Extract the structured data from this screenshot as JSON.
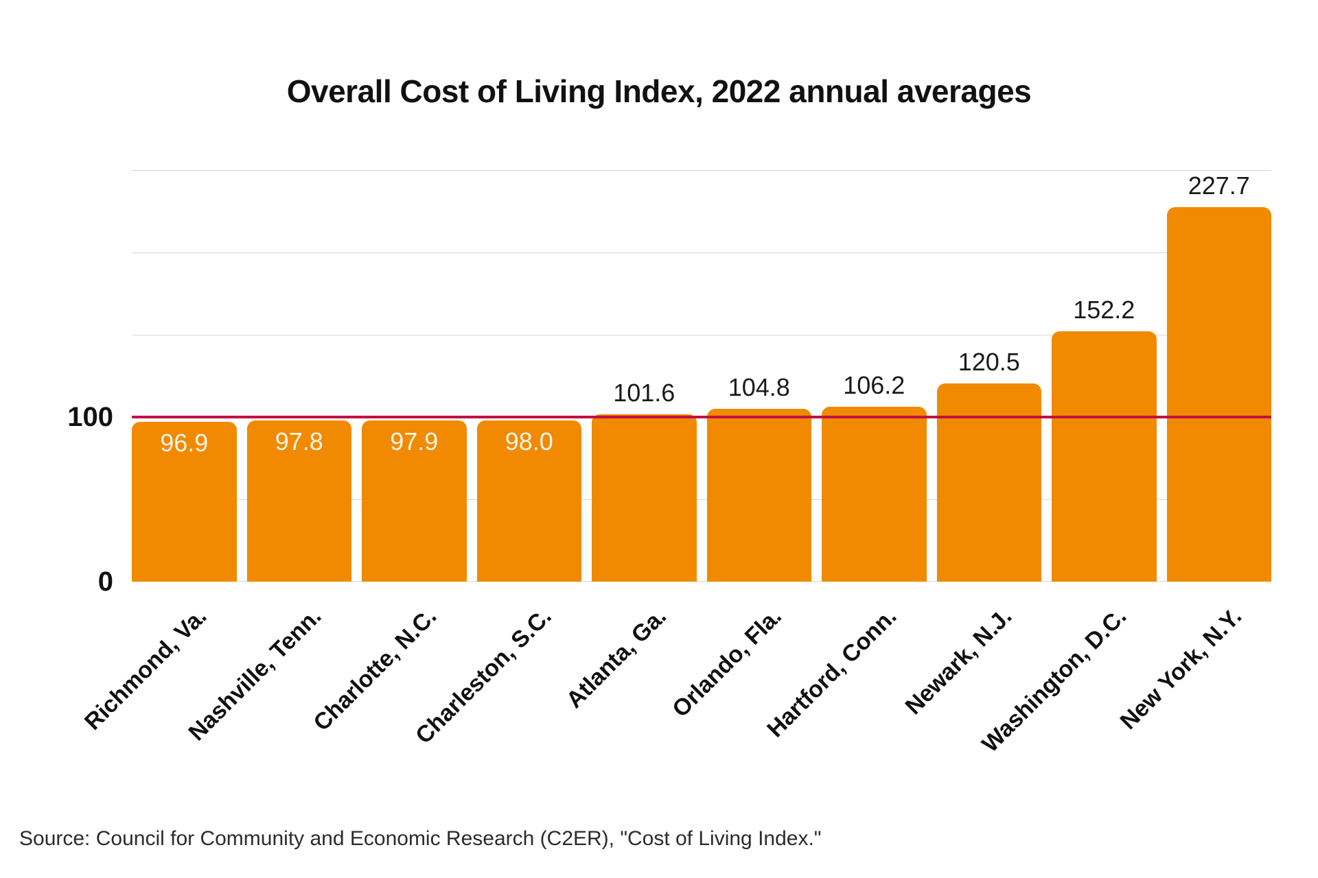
{
  "chart_data": {
    "type": "bar",
    "title": "Overall Cost of Living Index, 2022 annual averages",
    "categories": [
      "Richmond, Va.",
      "Nashville, Tenn.",
      "Charlotte, N.C.",
      "Charleston, S.C.",
      "Atlanta, Ga.",
      "Orlando, Fla.",
      "Hartford, Conn.",
      "Newark, N.J.",
      "Washington, D.C.",
      "New York, N.Y."
    ],
    "values": [
      96.9,
      97.8,
      97.9,
      98.0,
      101.6,
      104.8,
      106.2,
      120.5,
      152.2,
      227.7
    ],
    "value_labels": [
      "96.9",
      "97.8",
      "97.9",
      "98.0",
      "101.6",
      "104.8",
      "106.2",
      "120.5",
      "152.2",
      "227.7"
    ],
    "xlabel": "",
    "ylabel": "",
    "ylim": [
      0,
      250
    ],
    "yticks": [
      {
        "label": "100",
        "value": 100
      },
      {
        "label": "0",
        "value": 0
      }
    ],
    "gridline_values": [
      0,
      50,
      150,
      200,
      250
    ],
    "grid": "horizontal",
    "legend": null,
    "reference_line": {
      "value": 100,
      "color": "#c01243"
    },
    "bar_color": "#f18a00",
    "inside_label_color": "#fcf5ea",
    "outside_label_color": "#1a1a1a",
    "inside_label_threshold": 100,
    "source": "Source: Council for Community and Economic Research (C2ER), \"Cost of Living Index.\""
  }
}
